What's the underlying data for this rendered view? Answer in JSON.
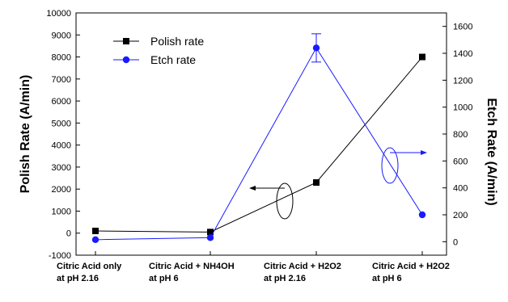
{
  "chart_data": {
    "type": "line",
    "categories": [
      [
        "Citric Acid only",
        "at pH 2.16"
      ],
      [
        "Citric Acid + NH4OH",
        "at pH 6"
      ],
      [
        "Citric Acid + H2O2",
        "at pH 2.16"
      ],
      [
        "Citric Acid + H2O2",
        "at pH 6"
      ]
    ],
    "y_left": {
      "label": "Polish Rate (A/min)",
      "range": [
        -1000,
        10000
      ],
      "ticks": [
        -1000,
        0,
        1000,
        2000,
        3000,
        4000,
        5000,
        6000,
        7000,
        8000,
        9000,
        10000
      ]
    },
    "y_right": {
      "label": "Etch Rate (A/min)",
      "range": [
        -100,
        1700
      ],
      "ticks": [
        0,
        200,
        400,
        600,
        800,
        1000,
        1200,
        1400,
        1600
      ]
    },
    "series": [
      {
        "name": "Polish rate",
        "axis": "left",
        "marker": "square",
        "color": "#000000",
        "values": [
          100,
          50,
          2300,
          8000
        ]
      },
      {
        "name": "Etch rate",
        "axis": "right",
        "marker": "circle",
        "color": "#1a1aff",
        "values": [
          15,
          30,
          1440,
          200
        ],
        "error": [
          0,
          0,
          105,
          0
        ]
      }
    ],
    "legend": {
      "placement": "top-left"
    },
    "grid": false,
    "annotations": [
      {
        "type": "ellipse-arrow",
        "series": "Polish rate",
        "direction": "left"
      },
      {
        "type": "ellipse-arrow",
        "series": "Etch rate",
        "direction": "right"
      }
    ]
  }
}
